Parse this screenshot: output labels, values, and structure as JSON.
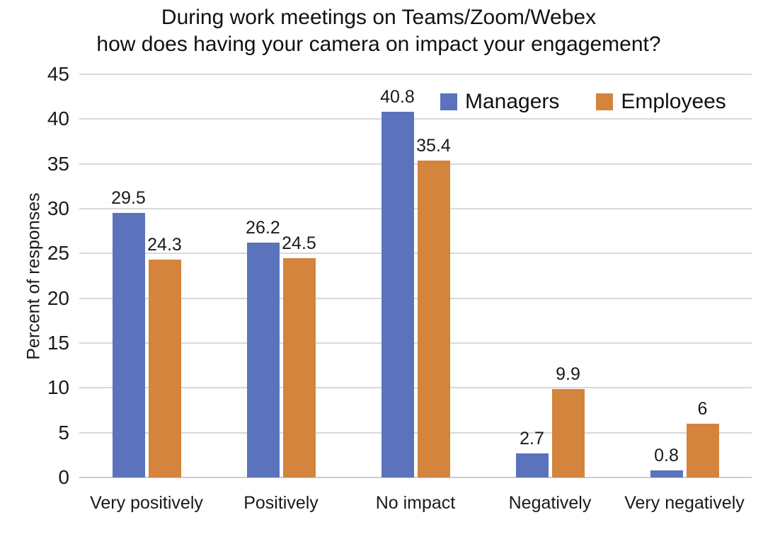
{
  "chart_data": {
    "type": "bar",
    "title_line1": "During work meetings on Teams/Zoom/Webex",
    "title_line2": "how does having your camera on impact your engagement?",
    "ylabel": "Percent of responses",
    "categories": [
      "Very positively",
      "Positively",
      "No impact",
      "Negatively",
      "Very negatively"
    ],
    "series": [
      {
        "name": "Managers",
        "color": "#5B73BD",
        "values": [
          29.5,
          26.2,
          40.8,
          2.7,
          0.8
        ]
      },
      {
        "name": "Employees",
        "color": "#D4843C",
        "values": [
          24.3,
          24.5,
          35.4,
          9.9,
          6
        ]
      }
    ],
    "ylim": [
      0,
      45
    ],
    "yticks": [
      0,
      5,
      10,
      15,
      20,
      25,
      30,
      35,
      40,
      45
    ],
    "grid": "horizontal",
    "gridline_color": "#d8d8d8",
    "legend_position": "top-right-inside",
    "text_color": "#1a1a1a"
  }
}
